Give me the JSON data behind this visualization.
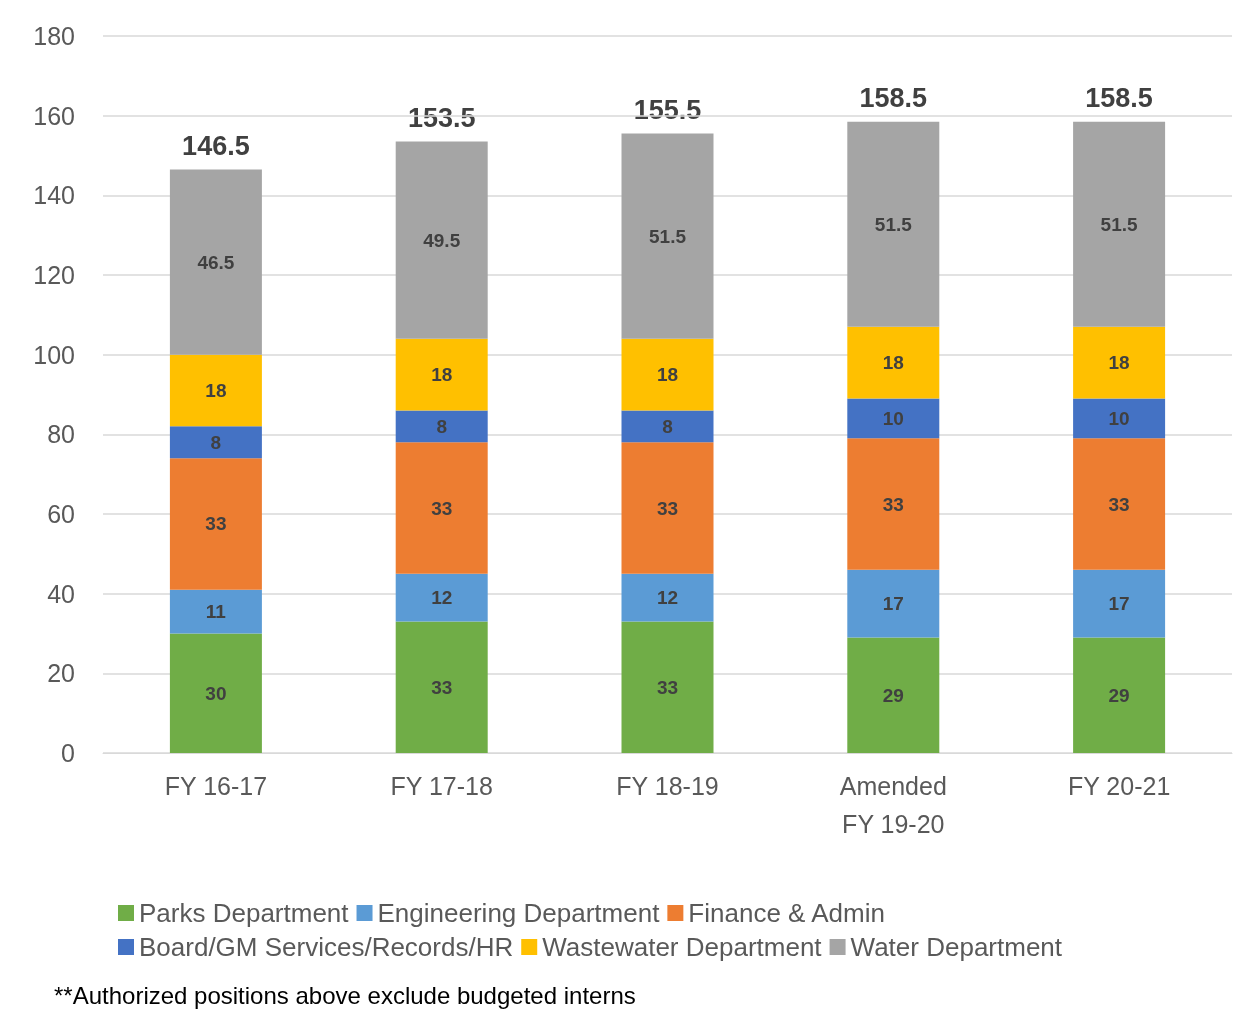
{
  "chart_data": {
    "type": "bar",
    "stacked": true,
    "categories": [
      "FY 16-17",
      "FY 17-18",
      "FY 18-19",
      "Amended\nFY 19-20",
      "FY 20-21"
    ],
    "series": [
      {
        "name": "Parks Department",
        "color": "#70ad47",
        "values": [
          30,
          33,
          33,
          29,
          29
        ]
      },
      {
        "name": "Engineering Department",
        "color": "#5b9bd5",
        "values": [
          11,
          12,
          12,
          17,
          17
        ]
      },
      {
        "name": "Finance & Admin",
        "color": "#ed7d31",
        "values": [
          33,
          33,
          33,
          33,
          33
        ]
      },
      {
        "name": "Board/GM Services/Records/HR",
        "color": "#4472c4",
        "values": [
          8,
          8,
          8,
          10,
          10
        ]
      },
      {
        "name": "Wastewater Department",
        "color": "#ffc000",
        "values": [
          18,
          18,
          18,
          18,
          18
        ]
      },
      {
        "name": "Water Department",
        "color": "#a5a5a5",
        "values": [
          46.5,
          49.5,
          51.5,
          51.5,
          51.5
        ]
      }
    ],
    "totals": [
      "146.5",
      "153.5",
      "155.5",
      "158.5",
      "158.5"
    ],
    "data_labels": true,
    "ylim": [
      0,
      180
    ],
    "yticks": [
      0,
      20,
      40,
      60,
      80,
      100,
      120,
      140,
      160,
      180
    ],
    "grid": "y",
    "legend": "bottom",
    "annotations": [
      "**Authorized positions above exclude budgeted interns"
    ]
  }
}
